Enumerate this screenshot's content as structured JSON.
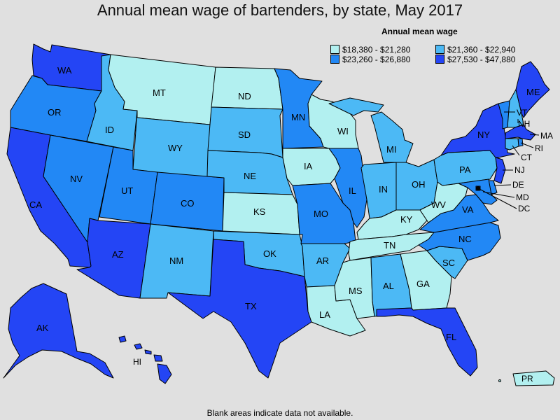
{
  "title": "Annual mean wage of bartenders, by state, May 2017",
  "legend": {
    "title": "Annual mean wage",
    "items": [
      {
        "label": "$18,380 - $21,280",
        "color": "#b2f0f0"
      },
      {
        "label": "$21,360 - $22,940",
        "color": "#4cb9f5"
      },
      {
        "label": "$23,260 - $26,880",
        "color": "#2288f5"
      },
      {
        "label": "$27,530 - $47,880",
        "color": "#2445f5"
      }
    ]
  },
  "footnote": "Blank areas indicate data not available.",
  "states": [
    {
      "abbr": "WA",
      "bin": 3
    },
    {
      "abbr": "OR",
      "bin": 2
    },
    {
      "abbr": "CA",
      "bin": 3
    },
    {
      "abbr": "ID",
      "bin": 1
    },
    {
      "abbr": "NV",
      "bin": 2
    },
    {
      "abbr": "MT",
      "bin": 0
    },
    {
      "abbr": "WY",
      "bin": 1
    },
    {
      "abbr": "UT",
      "bin": 2
    },
    {
      "abbr": "AZ",
      "bin": 3
    },
    {
      "abbr": "CO",
      "bin": 2
    },
    {
      "abbr": "NM",
      "bin": 1
    },
    {
      "abbr": "ND",
      "bin": 0
    },
    {
      "abbr": "SD",
      "bin": 1
    },
    {
      "abbr": "NE",
      "bin": 1
    },
    {
      "abbr": "KS",
      "bin": 0
    },
    {
      "abbr": "OK",
      "bin": 1
    },
    {
      "abbr": "TX",
      "bin": 3
    },
    {
      "abbr": "MN",
      "bin": 2
    },
    {
      "abbr": "IA",
      "bin": 0
    },
    {
      "abbr": "MO",
      "bin": 2
    },
    {
      "abbr": "AR",
      "bin": 1
    },
    {
      "abbr": "LA",
      "bin": 0
    },
    {
      "abbr": "WI",
      "bin": 0
    },
    {
      "abbr": "IL",
      "bin": 2
    },
    {
      "abbr": "MI",
      "bin": 1
    },
    {
      "abbr": "IN",
      "bin": 1
    },
    {
      "abbr": "OH",
      "bin": 1
    },
    {
      "abbr": "KY",
      "bin": 0
    },
    {
      "abbr": "TN",
      "bin": 0
    },
    {
      "abbr": "MS",
      "bin": 0
    },
    {
      "abbr": "AL",
      "bin": 1
    },
    {
      "abbr": "GA",
      "bin": 0
    },
    {
      "abbr": "FL",
      "bin": 3
    },
    {
      "abbr": "SC",
      "bin": 1
    },
    {
      "abbr": "NC",
      "bin": 2
    },
    {
      "abbr": "VA",
      "bin": 2
    },
    {
      "abbr": "WV",
      "bin": 0
    },
    {
      "abbr": "PA",
      "bin": 1
    },
    {
      "abbr": "NY",
      "bin": 3
    },
    {
      "abbr": "VT",
      "bin": 2
    },
    {
      "abbr": "NH",
      "bin": 1
    },
    {
      "abbr": "ME",
      "bin": 3
    },
    {
      "abbr": "MA",
      "bin": 3
    },
    {
      "abbr": "RI",
      "bin": 2
    },
    {
      "abbr": "CT",
      "bin": 1
    },
    {
      "abbr": "NJ",
      "bin": 3
    },
    {
      "abbr": "DE",
      "bin": 2
    },
    {
      "abbr": "MD",
      "bin": 2
    },
    {
      "abbr": "DC",
      "bin": 3
    },
    {
      "abbr": "AK",
      "bin": 3
    },
    {
      "abbr": "HI",
      "bin": 3
    },
    {
      "abbr": "PR",
      "bin": 0
    }
  ]
}
